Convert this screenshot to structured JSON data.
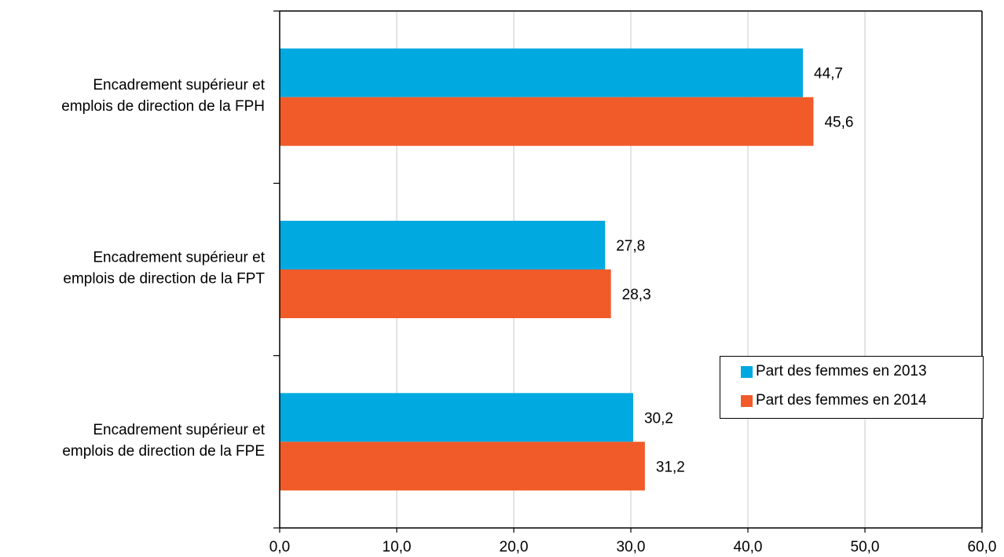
{
  "chart_data": {
    "type": "bar",
    "orientation": "horizontal",
    "categories": [
      [
        "Encadrement supérieur et",
        "emplois de direction de la FPH"
      ],
      [
        "Encadrement supérieur et",
        "emplois de direction de la FPT"
      ],
      [
        "Encadrement supérieur et",
        "emplois de direction de la FPE"
      ]
    ],
    "series": [
      {
        "name": "Part des femmes en 2013",
        "color": "#00A9E0",
        "values": [
          44.7,
          27.8,
          30.2
        ],
        "labels": [
          "44,7",
          "27,8",
          "30,2"
        ]
      },
      {
        "name": "Part des femmes en 2014",
        "color": "#F15A29",
        "values": [
          45.6,
          28.3,
          31.2
        ],
        "labels": [
          "45,6",
          "28,3",
          "31,2"
        ]
      }
    ],
    "xlim": [
      0,
      60
    ],
    "xticks": [
      0,
      10,
      20,
      30,
      40,
      50,
      60
    ],
    "xtick_labels": [
      "0,0",
      "10,0",
      "20,0",
      "30,0",
      "40,0",
      "50,0",
      "60,0"
    ],
    "grid": "vertical",
    "legend_position": "bottom-right",
    "title": "",
    "xlabel": "",
    "ylabel": ""
  }
}
